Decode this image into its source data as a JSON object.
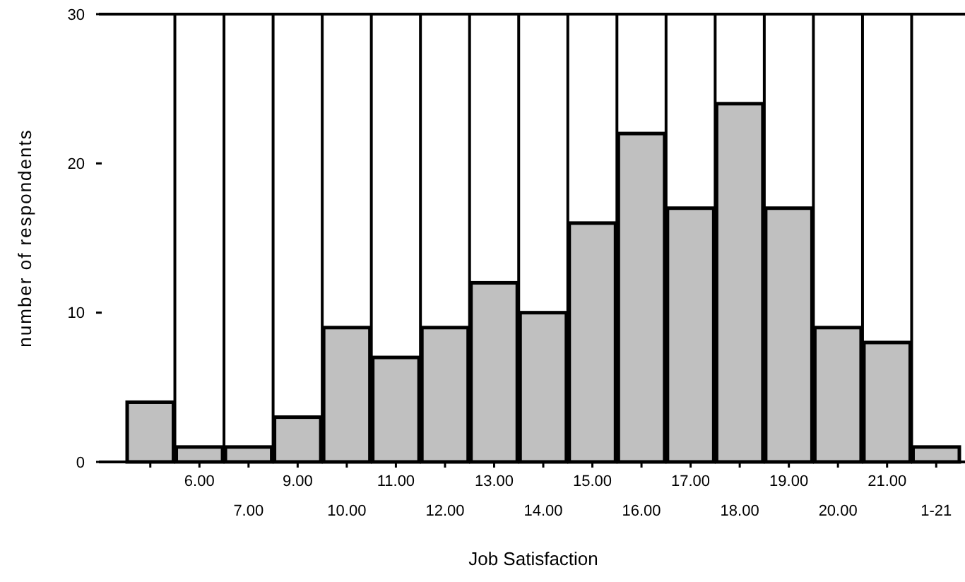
{
  "chart_data": {
    "type": "bar",
    "xlabel": "Job Satisfaction",
    "ylabel": "number of respondents",
    "categories": [
      null,
      "6.00",
      "7.00",
      "9.00",
      "10.00",
      "11.00",
      "12.00",
      "13.00",
      "14.00",
      "15.00",
      "16.00",
      "17.00",
      "18.00",
      "19.00",
      "20.00",
      "21.00",
      "1-21"
    ],
    "values": [
      4,
      1,
      1,
      3,
      9,
      7,
      9,
      12,
      10,
      16,
      22,
      17,
      24,
      17,
      9,
      8,
      1
    ],
    "color": "#c0c0c0",
    "ylim": [
      0,
      30
    ],
    "yticks": [
      0,
      10,
      20,
      30
    ],
    "grid": "x"
  }
}
